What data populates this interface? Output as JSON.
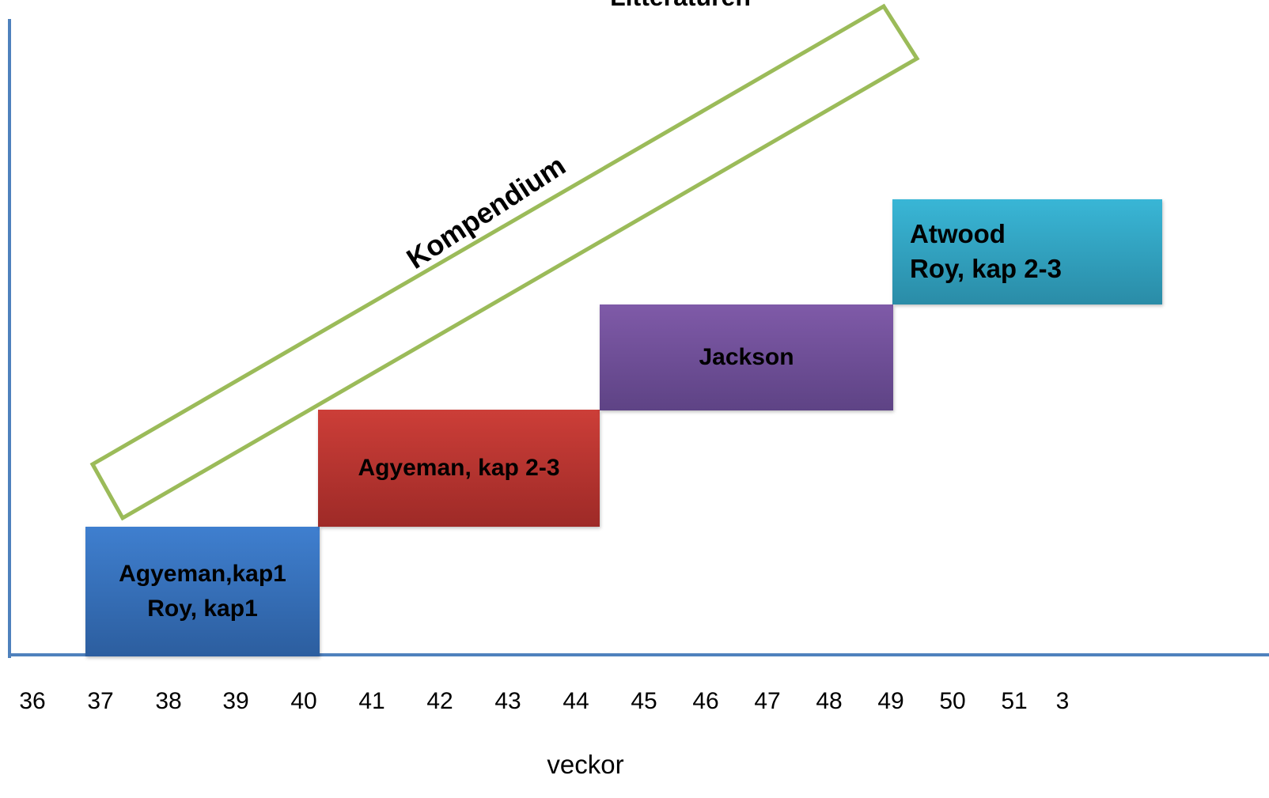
{
  "title": "Litteraturen",
  "xlabel": "veckor",
  "ticks": [
    "36",
    "37",
    "38",
    "39",
    "40",
    "41",
    "42",
    "43",
    "44",
    "45",
    "46",
    "47",
    "48",
    "49",
    "50",
    "51",
    "3"
  ],
  "band": {
    "label": "Kompendium",
    "color": "#9bbb59"
  },
  "blocks": [
    {
      "lines": [
        "Agyeman,kap1",
        "Roy, kap1"
      ],
      "color": "#3a76c4"
    },
    {
      "lines": [
        "Agyeman, kap 2-3"
      ],
      "color": "#c0392b"
    },
    {
      "lines": [
        "Jackson"
      ],
      "color": "#7254a0"
    },
    {
      "lines": [
        "Atwood",
        "Roy, kap 2-3"
      ],
      "color": "#31a8c8"
    }
  ],
  "axis_color": "#4f81bd"
}
